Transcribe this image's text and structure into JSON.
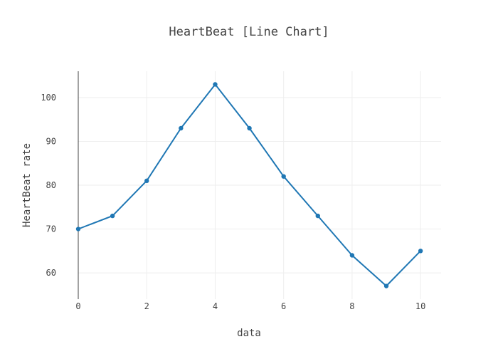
{
  "chart_data": {
    "type": "line",
    "title": "HeartBeat [Line Chart]",
    "xlabel": "data",
    "ylabel": "HeartBeat rate",
    "x": [
      0,
      1,
      2,
      3,
      4,
      5,
      6,
      7,
      8,
      9,
      10
    ],
    "series": [
      {
        "values": [
          70,
          73,
          81,
          93,
          103,
          93,
          82,
          73,
          64,
          57,
          65
        ],
        "color": "#1f77b4",
        "markers": true
      }
    ],
    "xlim": [
      0,
      10.6
    ],
    "ylim": [
      54,
      106
    ],
    "xticks": [
      0,
      2,
      4,
      6,
      8,
      10
    ],
    "xtick_labels": [
      "0",
      "2",
      "4",
      "6",
      "8",
      "10"
    ],
    "yticks": [
      60,
      70,
      80,
      90,
      100
    ],
    "ytick_labels": [
      "60",
      "70",
      "80",
      "90",
      "100"
    ],
    "grid": true,
    "legend": false
  }
}
